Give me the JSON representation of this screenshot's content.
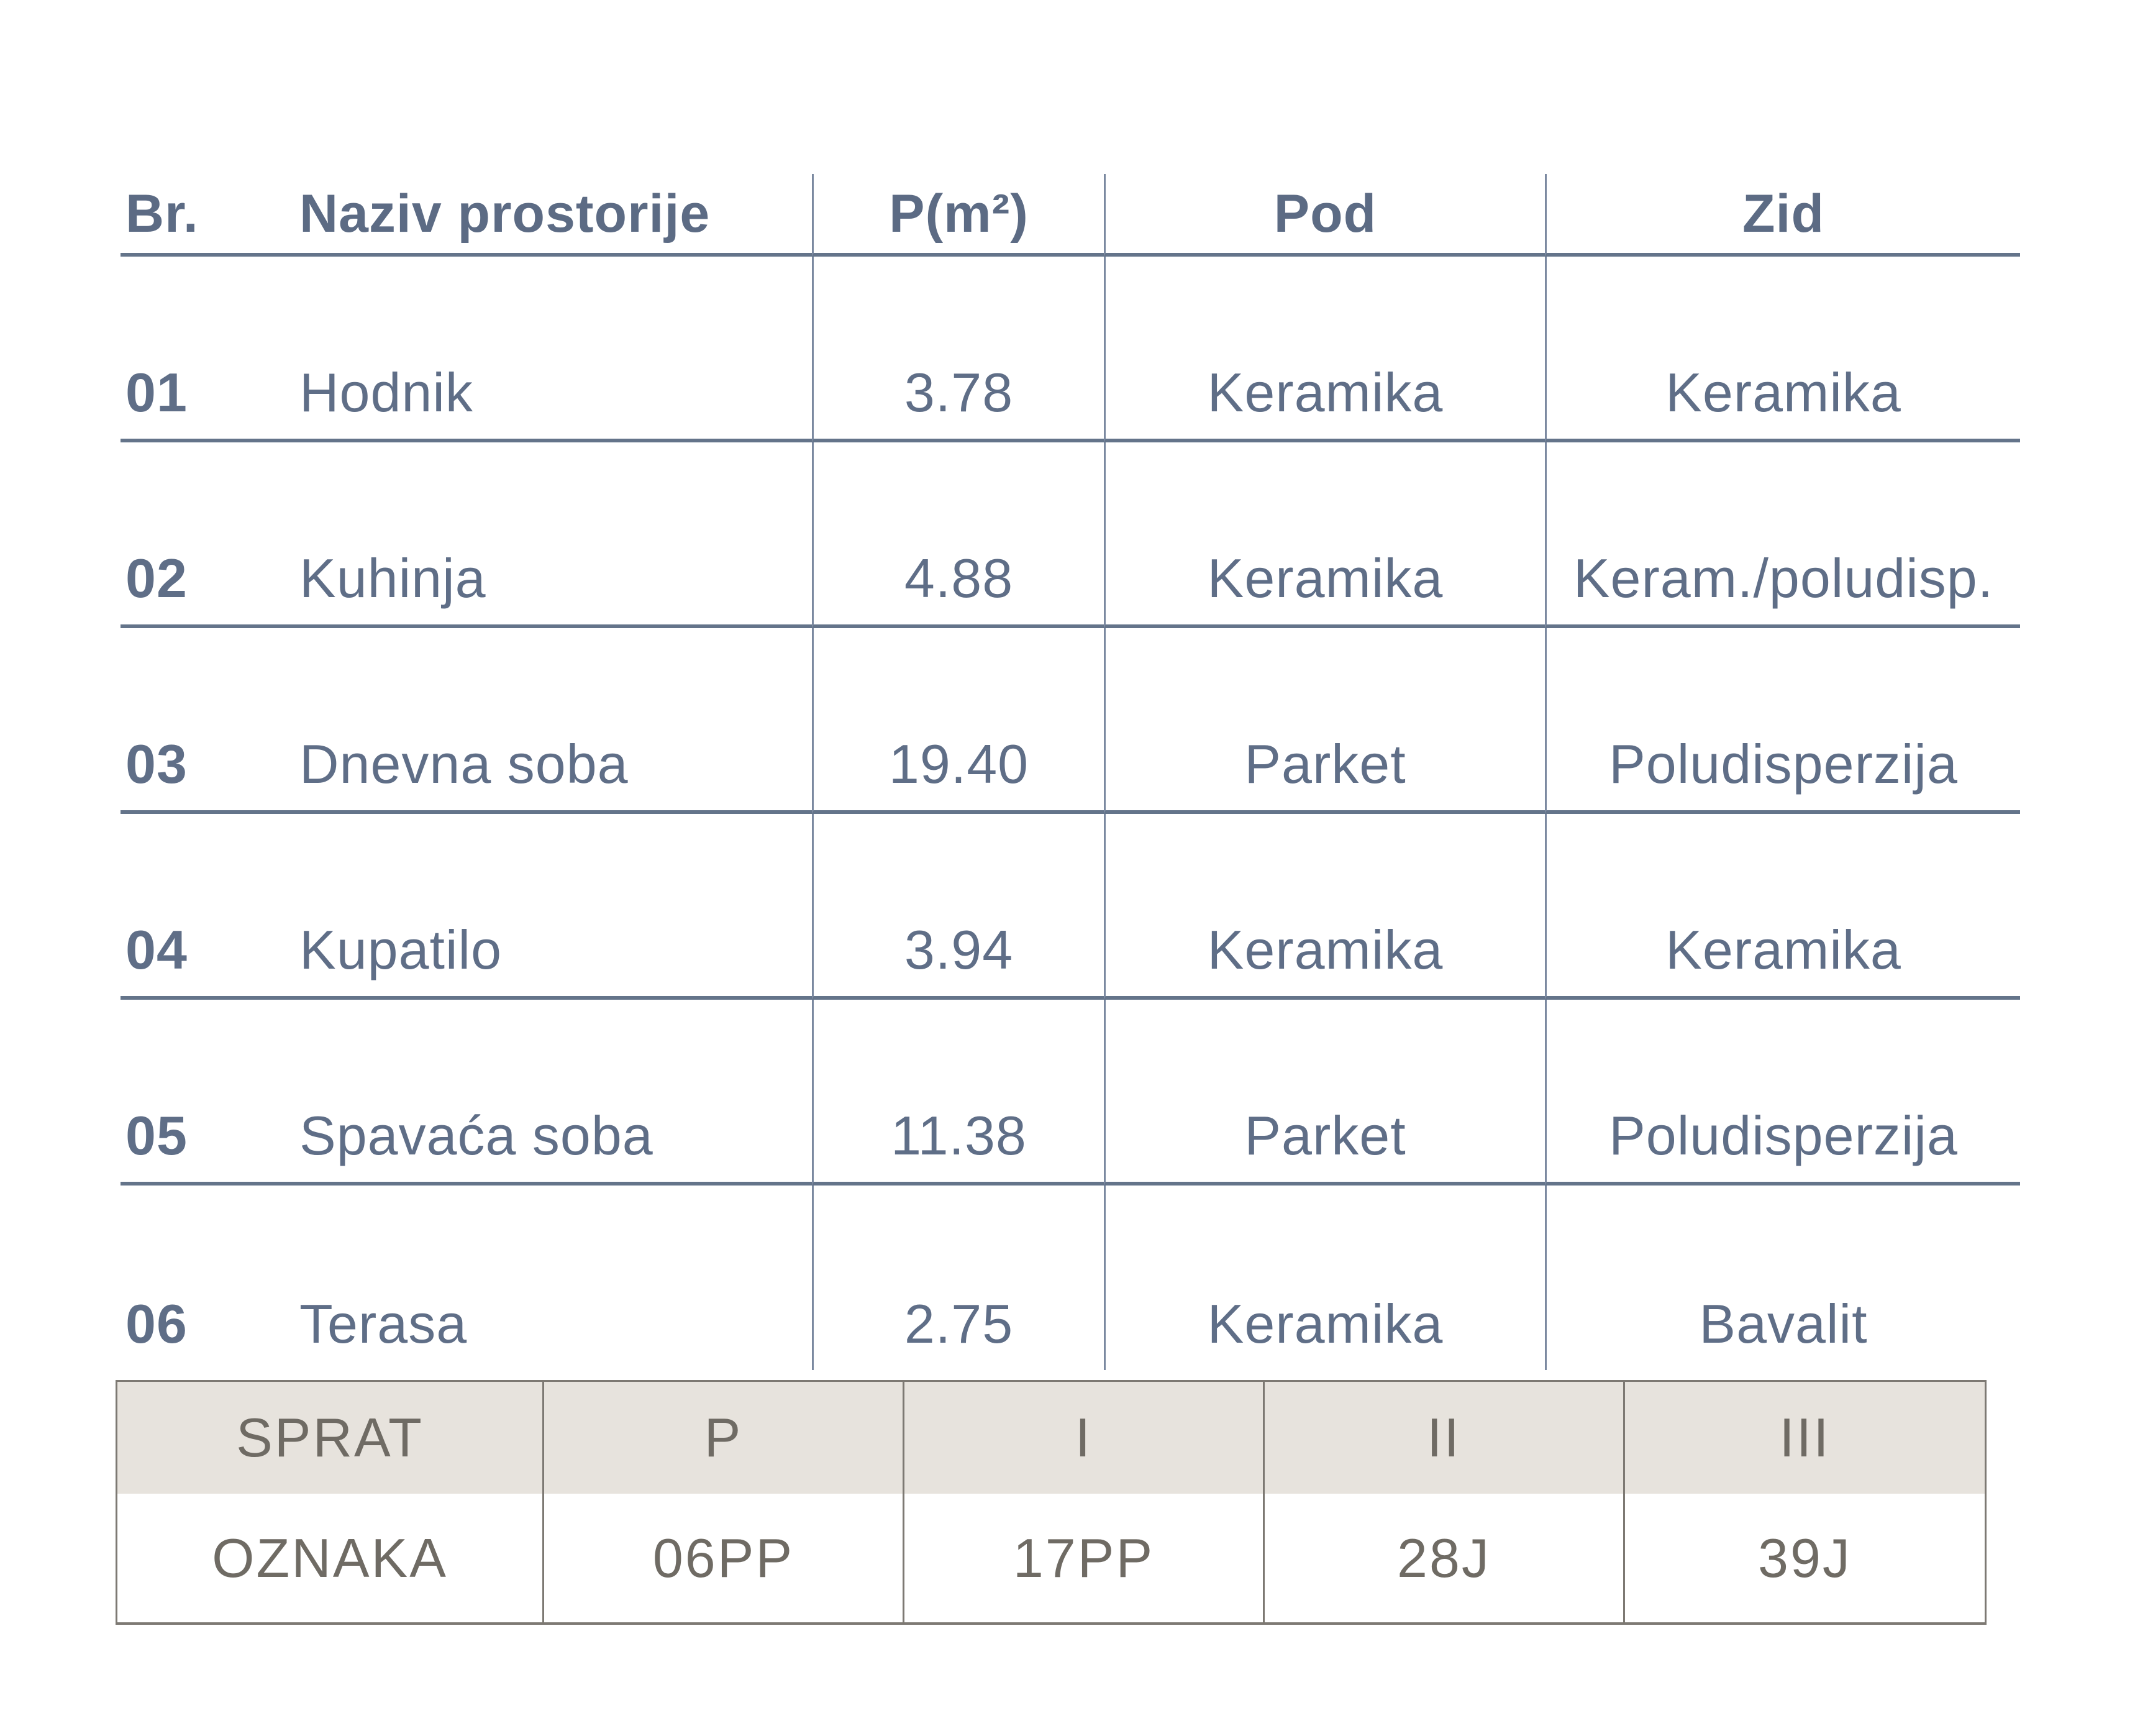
{
  "colors": {
    "room_text": "#5f6e87",
    "room_rule": "#64748a",
    "floor_text": "#6f6b64",
    "floor_header_bg": "#e7e3dd",
    "floor_border": "#7d7973",
    "page_bg": "#ffffff"
  },
  "room_table": {
    "columns": {
      "br": "Br.",
      "naziv": "Naziv prostorije",
      "p": "P(m²)",
      "pod": "Pod",
      "zid": "Zid"
    },
    "rows": [
      {
        "br": "01",
        "naziv": "Hodnik",
        "p": "3.78",
        "pod": "Keramika",
        "zid": "Keramika"
      },
      {
        "br": "02",
        "naziv": "Kuhinja",
        "p": "4.88",
        "pod": "Keramika",
        "zid": "Keram./poludisp."
      },
      {
        "br": "03",
        "naziv": "Dnevna soba",
        "p": "19.40",
        "pod": "Parket",
        "zid": "Poludisperzija"
      },
      {
        "br": "04",
        "naziv": "Kupatilo",
        "p": "3.94",
        "pod": "Keramika",
        "zid": "Keramika"
      },
      {
        "br": "05",
        "naziv": "Spavaća soba",
        "p": "11.38",
        "pod": "Parket",
        "zid": "Poludisperzija"
      },
      {
        "br": "06",
        "naziv": "Terasa",
        "p": "2.75",
        "pod": "Keramika",
        "zid": "Bavalit"
      }
    ]
  },
  "floor_table": {
    "header": [
      "SPRAT",
      "P",
      "I",
      "II",
      "III"
    ],
    "row": [
      "OZNAKA",
      "06PP",
      "17PP",
      "28J",
      "39J"
    ]
  }
}
